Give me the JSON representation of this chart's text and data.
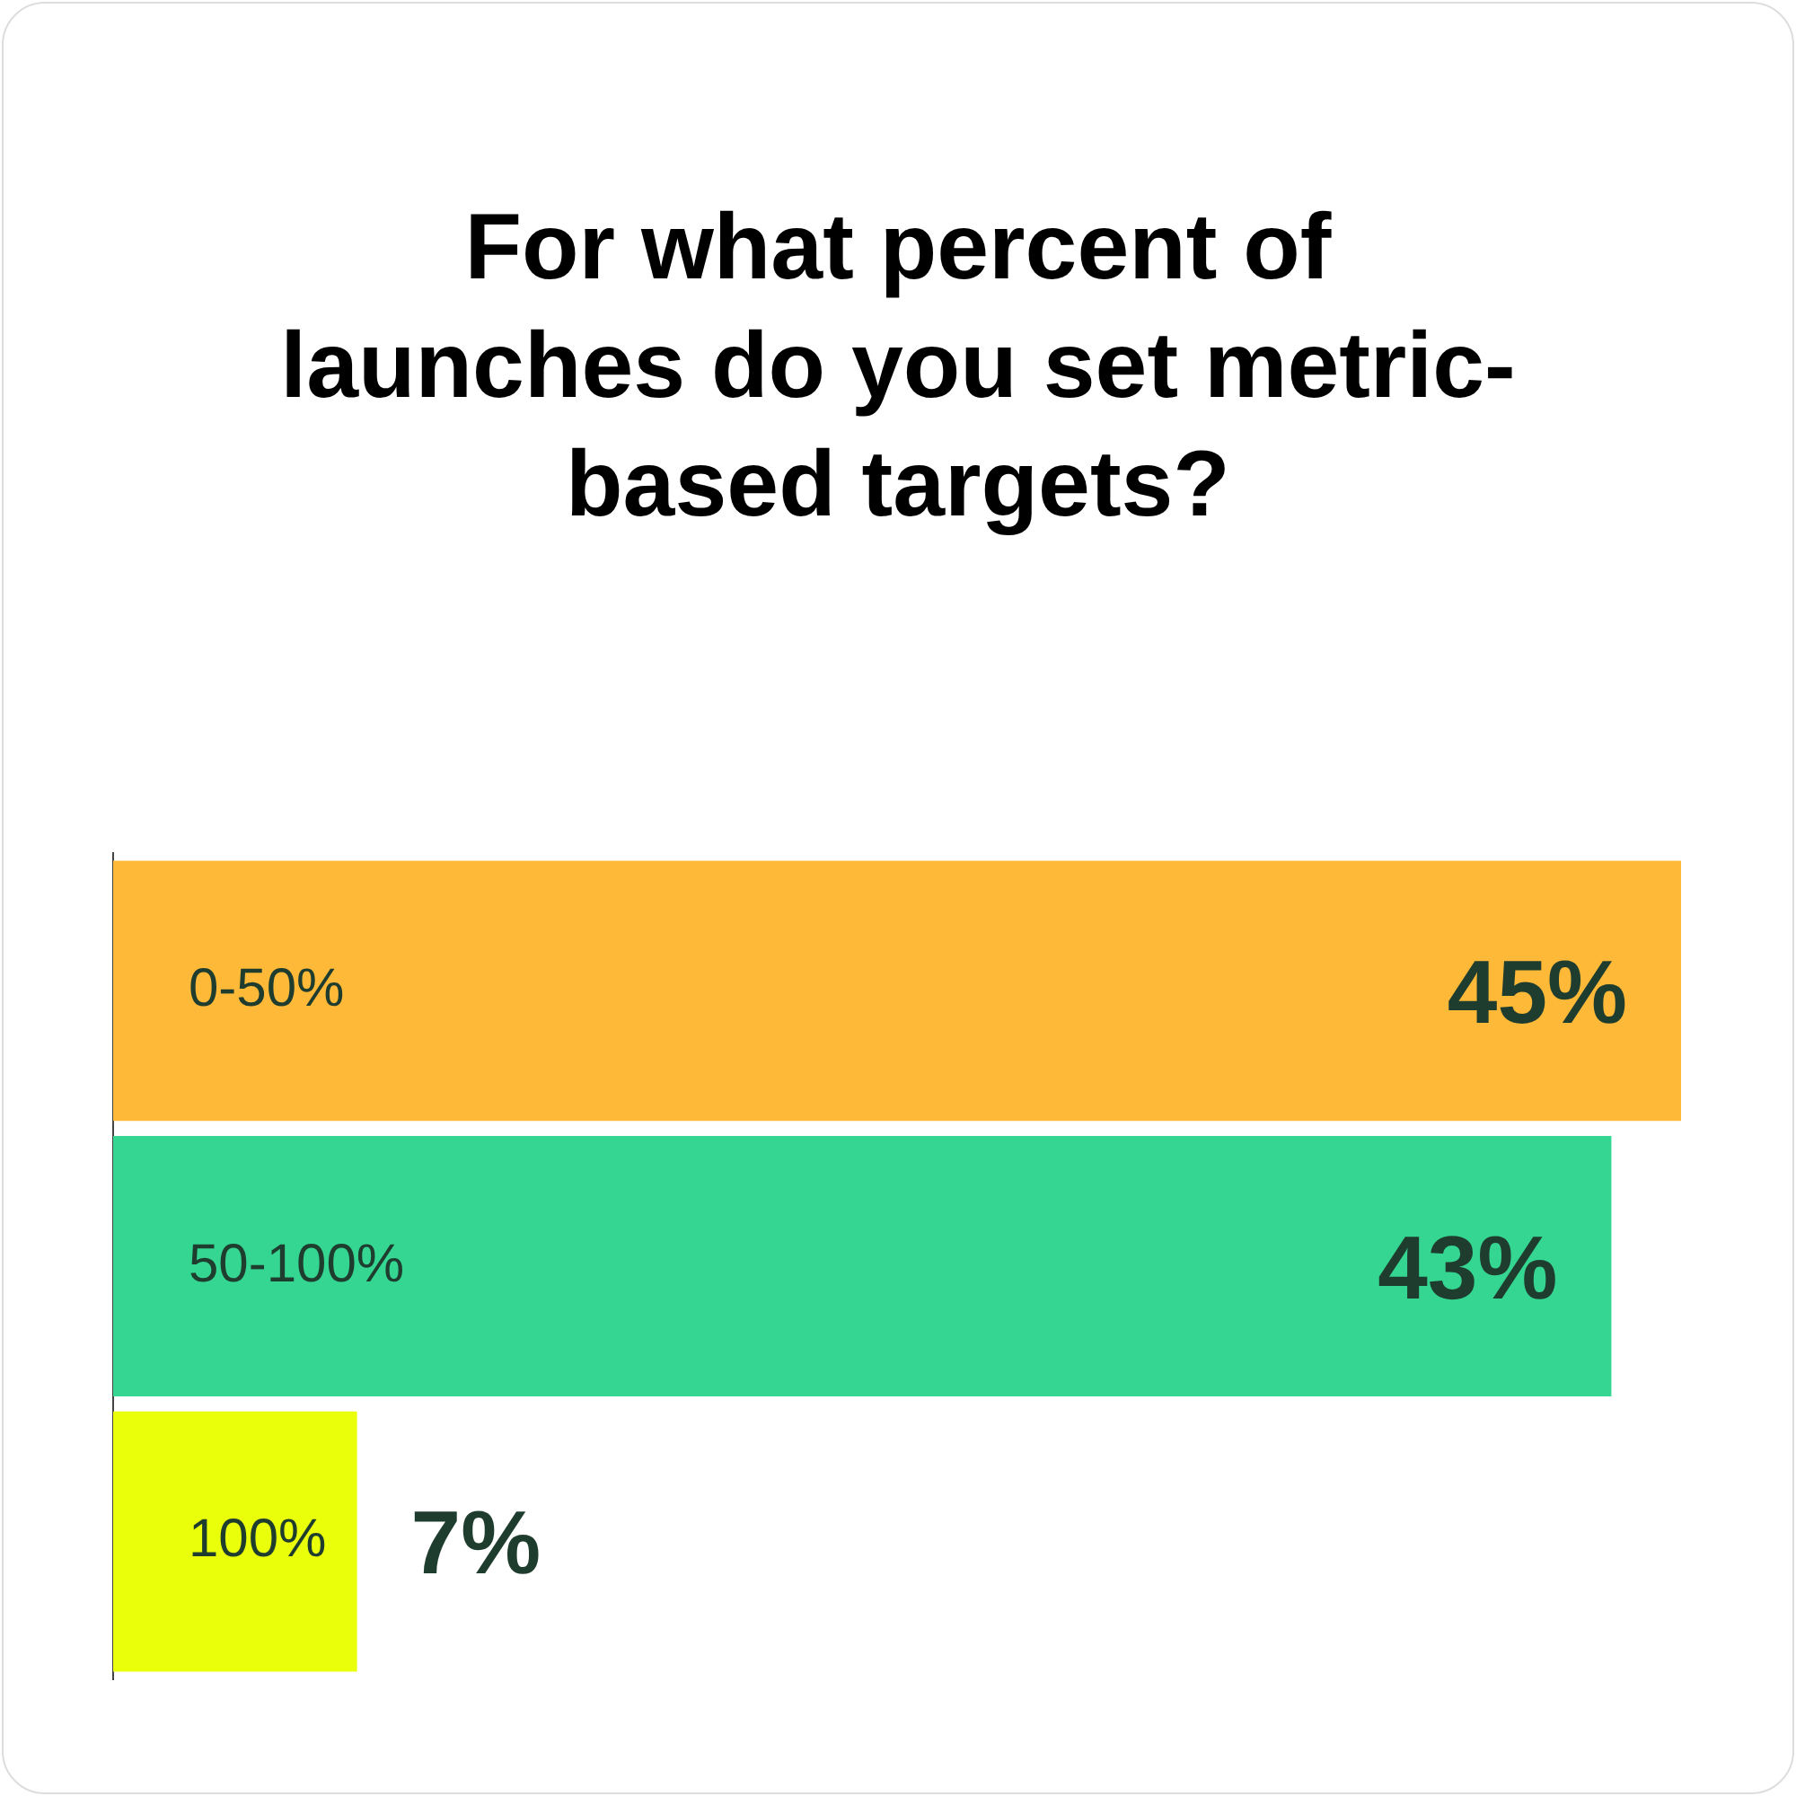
{
  "chart_data": {
    "type": "bar",
    "orientation": "horizontal",
    "title": "For what percent of launches do you set metric-based targets?",
    "categories": [
      "0-50%",
      "50-100%",
      "100%"
    ],
    "values": [
      45,
      43,
      7
    ],
    "colors": [
      "#ffb938",
      "#35d692",
      "#eaff0a"
    ],
    "value_labels": [
      "45%",
      "43%",
      "7%"
    ],
    "legend": false
  }
}
